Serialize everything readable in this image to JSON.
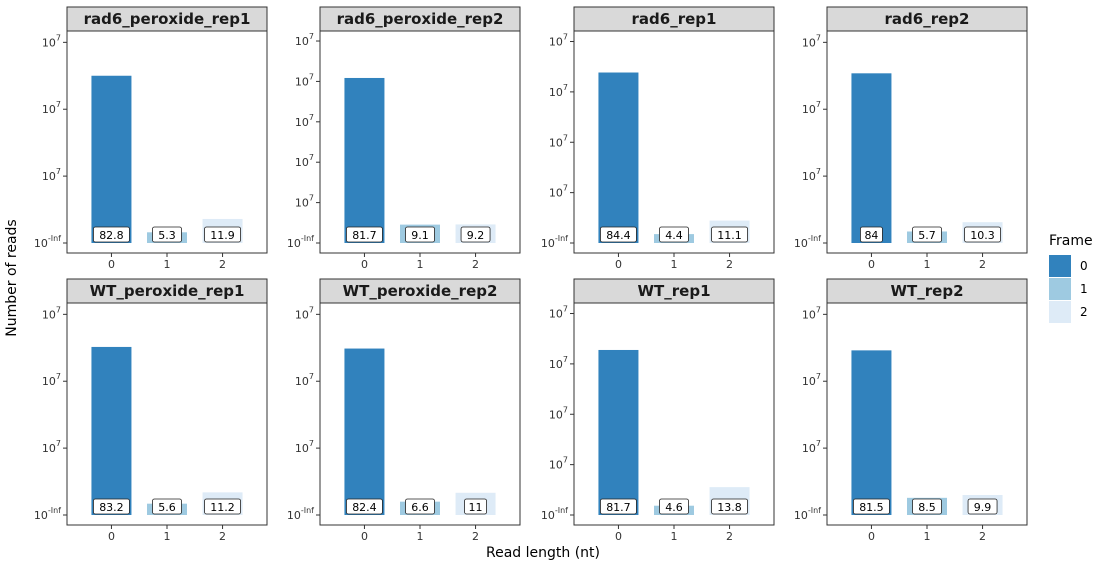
{
  "chart_data": {
    "type": "bar",
    "xlabel": "Read length (nt)",
    "ylabel": "Number of reads",
    "y_tick_label": "10^7",
    "y_bottom_tick_label": "10^-Inf",
    "categories": [
      "0",
      "1",
      "2"
    ],
    "legend": {
      "title": "Frame",
      "position": "right",
      "items": [
        {
          "label": "0",
          "color": "#3182bd"
        },
        {
          "label": "1",
          "color": "#9ecae1"
        },
        {
          "label": "2",
          "color": "#deebf7"
        }
      ]
    },
    "panels": [
      {
        "title": "rad6_peroxide_rep1",
        "values": [
          82.8,
          5.3,
          11.9
        ],
        "labels": [
          "82.8",
          "5.3",
          "11.9"
        ],
        "yticks": 3
      },
      {
        "title": "rad6_peroxide_rep2",
        "values": [
          81.7,
          9.1,
          9.2
        ],
        "labels": [
          "81.7",
          "9.1",
          "9.2"
        ],
        "yticks": 5
      },
      {
        "title": "rad6_rep1",
        "values": [
          84.4,
          4.4,
          11.1
        ],
        "labels": [
          "84.4",
          "4.4",
          "11.1"
        ],
        "yticks": 4
      },
      {
        "title": "rad6_rep2",
        "values": [
          84,
          5.7,
          10.3
        ],
        "labels": [
          "84",
          "5.7",
          "10.3"
        ],
        "yticks": 3
      },
      {
        "title": "WT_peroxide_rep1",
        "values": [
          83.2,
          5.6,
          11.2
        ],
        "labels": [
          "83.2",
          "5.6",
          "11.2"
        ],
        "yticks": 3
      },
      {
        "title": "WT_peroxide_rep2",
        "values": [
          82.4,
          6.6,
          11
        ],
        "labels": [
          "82.4",
          "6.6",
          "11"
        ],
        "yticks": 3
      },
      {
        "title": "WT_rep1",
        "values": [
          81.7,
          4.6,
          13.8
        ],
        "labels": [
          "81.7",
          "4.6",
          "13.8"
        ],
        "yticks": 4
      },
      {
        "title": "WT_rep2",
        "values": [
          81.5,
          8.5,
          9.9
        ],
        "labels": [
          "81.5",
          "8.5",
          "9.9"
        ],
        "yticks": 3
      }
    ]
  }
}
